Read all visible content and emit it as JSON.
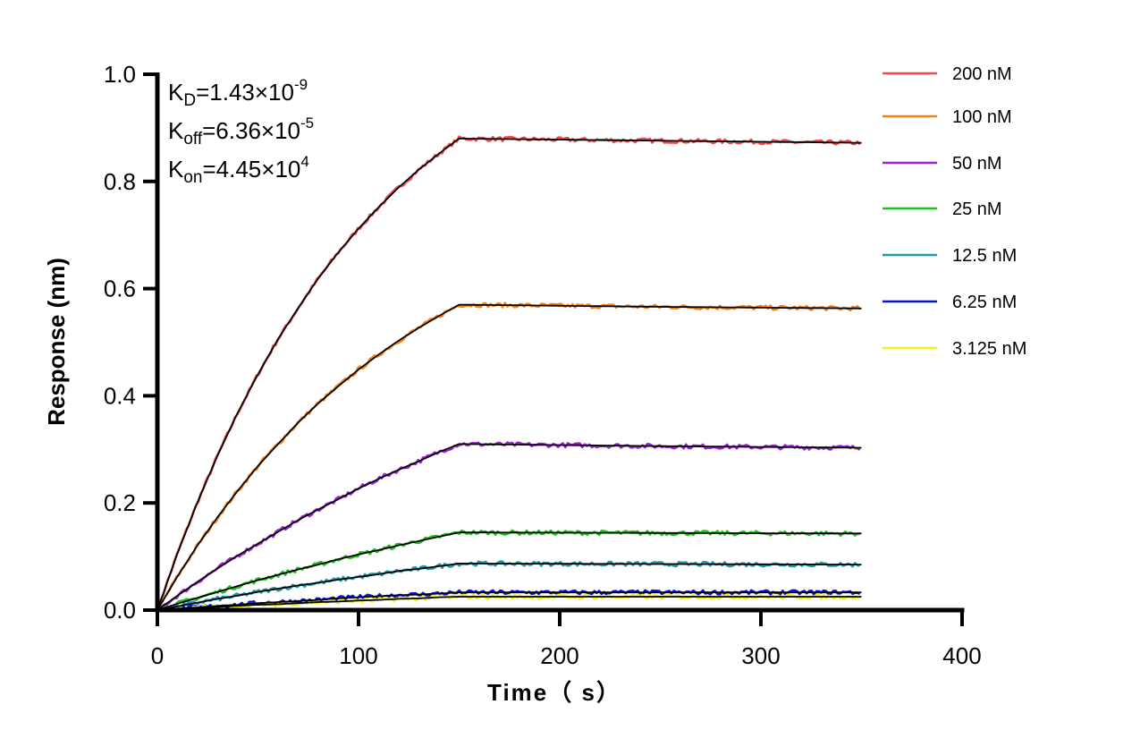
{
  "chart_data": {
    "type": "line",
    "xlabel": "Time（ s）",
    "ylabel": "Response (nm)",
    "xlim": [
      0,
      400
    ],
    "ylim": [
      0,
      1.0
    ],
    "xticks": [
      0,
      100,
      200,
      300,
      400
    ],
    "yticks": [
      0.0,
      0.2,
      0.4,
      0.6,
      0.8,
      1.0
    ],
    "xtick_labels": [
      "0",
      "100",
      "200",
      "300",
      "400"
    ],
    "ytick_labels": [
      "0.0",
      "0.2",
      "0.4",
      "0.6",
      "0.8",
      "1.0"
    ],
    "grid": false,
    "legend_placement": "top-right",
    "fit_color": "#000000",
    "annotations": [
      {
        "base": "K",
        "sub": "D",
        "text": "=1.43×10",
        "sup": "-9"
      },
      {
        "base": "K",
        "sub": "off",
        "text": "=6.36×10",
        "sup": "-5"
      },
      {
        "base": "K",
        "sub": "on",
        "text": "=4.45×10",
        "sup": "4"
      }
    ],
    "x": [
      0,
      10,
      20,
      30,
      40,
      50,
      60,
      70,
      80,
      90,
      100,
      110,
      120,
      130,
      140,
      150,
      250,
      350
    ],
    "series": [
      {
        "name": "200 nM",
        "color": "#f04a4a",
        "values": [
          0,
          0.106,
          0.202,
          0.289,
          0.369,
          0.44,
          0.506,
          0.564,
          0.619,
          0.668,
          0.712,
          0.752,
          0.789,
          0.822,
          0.852,
          0.88,
          0.876,
          0.872
        ]
      },
      {
        "name": "100 nM",
        "color": "#f7820f",
        "values": [
          0,
          0.063,
          0.121,
          0.174,
          0.223,
          0.269,
          0.31,
          0.35,
          0.386,
          0.418,
          0.449,
          0.477,
          0.503,
          0.527,
          0.549,
          0.57,
          0.566,
          0.563
        ]
      },
      {
        "name": "50 nM",
        "color": "#a020d8",
        "values": [
          0,
          0.027,
          0.053,
          0.078,
          0.102,
          0.124,
          0.146,
          0.168,
          0.188,
          0.207,
          0.227,
          0.245,
          0.262,
          0.278,
          0.295,
          0.31,
          0.306,
          0.303
        ]
      },
      {
        "name": "25 nM",
        "color": "#1ec01e",
        "values": [
          0,
          0.012,
          0.023,
          0.034,
          0.045,
          0.056,
          0.066,
          0.076,
          0.085,
          0.095,
          0.104,
          0.112,
          0.121,
          0.129,
          0.137,
          0.145,
          0.144,
          0.143
        ]
      },
      {
        "name": "12.5 nM",
        "color": "#1c9aae",
        "values": [
          0,
          0.007,
          0.014,
          0.021,
          0.027,
          0.034,
          0.04,
          0.046,
          0.051,
          0.057,
          0.062,
          0.067,
          0.073,
          0.077,
          0.082,
          0.087,
          0.086,
          0.085
        ]
      },
      {
        "name": "6.25 nM",
        "color": "#0a14e0",
        "values": [
          0,
          0.003,
          0.005,
          0.008,
          0.01,
          0.013,
          0.015,
          0.017,
          0.019,
          0.022,
          0.024,
          0.026,
          0.028,
          0.029,
          0.031,
          0.033,
          0.033,
          0.033
        ]
      },
      {
        "name": "3.125 nM",
        "color": "#f5f01e",
        "values": [
          0,
          0.002,
          0.004,
          0.006,
          0.008,
          0.01,
          0.011,
          0.013,
          0.015,
          0.016,
          0.018,
          0.019,
          0.021,
          0.022,
          0.024,
          0.025,
          0.025,
          0.025
        ]
      }
    ]
  }
}
